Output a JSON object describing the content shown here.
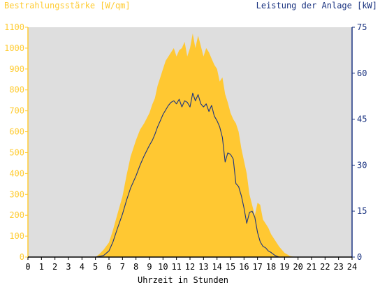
{
  "chart_data": {
    "type": "area",
    "title_left": "Bestrahlungsstärke [W/qm]",
    "title_right": "Leistung der Anlage [kW]",
    "xlabel": "Uhrzeit in Stunden",
    "x_ticks": [
      "0",
      "1",
      "2",
      "3",
      "4",
      "5",
      "6",
      "7",
      "8",
      "9",
      "10",
      "11",
      "12",
      "13",
      "14",
      "15",
      "16",
      "17",
      "18",
      "19",
      "20",
      "21",
      "22",
      "23",
      "24"
    ],
    "xlim": [
      0,
      24
    ],
    "y_left": {
      "lim": [
        0,
        1100
      ],
      "ticks": [
        "0",
        "100",
        "200",
        "300",
        "400",
        "500",
        "600",
        "700",
        "800",
        "900",
        "1000",
        "1100"
      ]
    },
    "y_right": {
      "lim": [
        0,
        75
      ],
      "ticks": [
        "0",
        "15",
        "30",
        "45",
        "60",
        "75"
      ]
    },
    "grid": false,
    "colors": {
      "irradiance": "#ffc832",
      "power": "#1a3380",
      "left_axis_text": "#ffcc33",
      "right_axis_text": "#1a3380",
      "plot_bg": "#dedede"
    },
    "series": [
      {
        "name": "Bestrahlungsstärke",
        "axis": "left",
        "style": "area",
        "x": [
          0,
          5.0,
          5.3,
          5.6,
          6.0,
          6.3,
          6.6,
          7.0,
          7.3,
          7.6,
          8.0,
          8.3,
          8.6,
          9.0,
          9.2,
          9.4,
          9.6,
          9.8,
          10.0,
          10.2,
          10.4,
          10.6,
          10.8,
          11.0,
          11.2,
          11.4,
          11.6,
          11.8,
          12.0,
          12.2,
          12.4,
          12.6,
          12.8,
          13.0,
          13.2,
          13.4,
          13.6,
          13.8,
          14.0,
          14.2,
          14.4,
          14.6,
          14.8,
          15.0,
          15.2,
          15.4,
          15.6,
          15.8,
          16.0,
          16.2,
          16.4,
          16.6,
          16.8,
          17.0,
          17.2,
          17.4,
          17.6,
          17.8,
          18.0,
          18.3,
          18.6,
          19.0,
          19.4,
          19.8,
          20.1,
          24
        ],
        "y": [
          0,
          0,
          15,
          35,
          70,
          130,
          200,
          290,
          390,
          480,
          560,
          610,
          640,
          690,
          730,
          760,
          820,
          860,
          900,
          940,
          960,
          980,
          1000,
          960,
          990,
          1000,
          1030,
          960,
          1000,
          1070,
          1000,
          1060,
          1010,
          960,
          1000,
          980,
          950,
          920,
          900,
          840,
          860,
          780,
          740,
          690,
          660,
          640,
          600,
          520,
          460,
          400,
          300,
          250,
          200,
          260,
          250,
          180,
          160,
          140,
          110,
          80,
          50,
          20,
          5,
          0,
          0,
          0
        ]
      },
      {
        "name": "Leistung der Anlage",
        "axis": "right",
        "style": "line",
        "x": [
          0,
          5.0,
          5.6,
          6.0,
          6.3,
          6.6,
          7.0,
          7.3,
          7.6,
          8.0,
          8.3,
          8.6,
          9.0,
          9.2,
          9.4,
          9.6,
          9.8,
          10.0,
          10.2,
          10.4,
          10.6,
          10.8,
          11.0,
          11.2,
          11.4,
          11.6,
          11.8,
          12.0,
          12.2,
          12.4,
          12.6,
          12.8,
          13.0,
          13.2,
          13.4,
          13.6,
          13.8,
          14.0,
          14.2,
          14.4,
          14.6,
          14.8,
          15.0,
          15.2,
          15.4,
          15.6,
          15.8,
          16.0,
          16.2,
          16.4,
          16.6,
          16.8,
          17.0,
          17.2,
          17.4,
          17.6,
          17.8,
          18.0,
          18.3,
          18.6,
          19.0,
          19.4,
          19.8,
          24
        ],
        "y": [
          0,
          0,
          0.5,
          2,
          5,
          9,
          14,
          18.5,
          22.5,
          26.5,
          30,
          33,
          36.5,
          38,
          40,
          42.5,
          44.5,
          46.5,
          48,
          49.5,
          50.5,
          51,
          50,
          51.5,
          49,
          51,
          50.5,
          49,
          53.5,
          51,
          53,
          50,
          49,
          50,
          47.5,
          49.5,
          46,
          44.5,
          42.5,
          39,
          31,
          34,
          33.5,
          32,
          24,
          23,
          20,
          16,
          11,
          14.5,
          15,
          13,
          8,
          5,
          3.5,
          3,
          2,
          1.5,
          0.5,
          0,
          0,
          0,
          0,
          0
        ]
      }
    ]
  }
}
